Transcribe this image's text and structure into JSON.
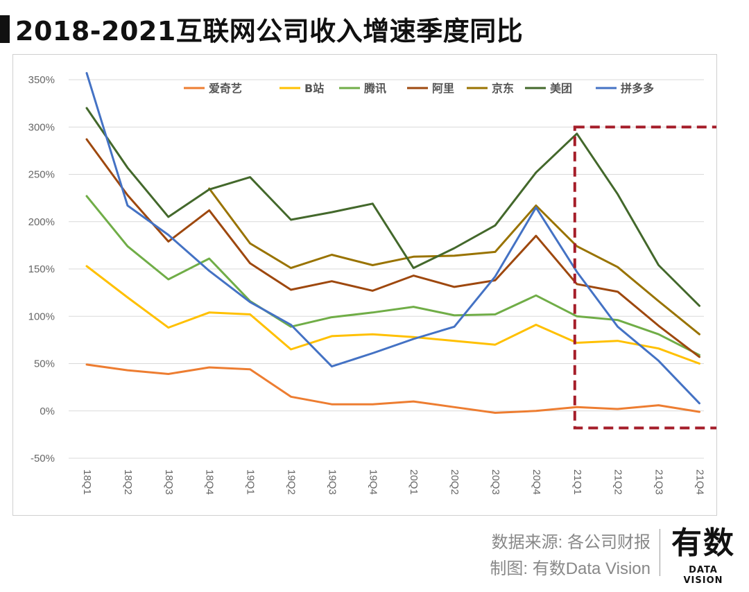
{
  "title": "2018-2021互联网公司收入增速季度同比",
  "footer": {
    "source": "数据来源: 各公司财报",
    "credit": "制图: 有数Data Vision"
  },
  "logo": {
    "main": "有数",
    "sub": "DATA VISION"
  },
  "chart_data": {
    "type": "line",
    "title": "2018-2021互联网公司收入增速季度同比",
    "xlabel": "",
    "ylabel": "",
    "ylim": [
      -50,
      350
    ],
    "yticks": [
      -50,
      0,
      50,
      100,
      150,
      200,
      250,
      300,
      350
    ],
    "ytick_labels": [
      "-50%",
      "0%",
      "50%",
      "100%",
      "150%",
      "200%",
      "250%",
      "300%",
      "350%"
    ],
    "grid": true,
    "legend_position": "top",
    "categories": [
      "18Q1",
      "18Q2",
      "18Q3",
      "18Q4",
      "19Q1",
      "19Q2",
      "19Q3",
      "19Q4",
      "20Q1",
      "20Q2",
      "20Q3",
      "20Q4",
      "21Q1",
      "21Q2",
      "21Q3",
      "21Q4"
    ],
    "series": [
      {
        "name": "爱奇艺",
        "color": "#ED7D31",
        "values": [
          49,
          43,
          39,
          46,
          44,
          15,
          7,
          7,
          10,
          4,
          -2,
          0,
          4,
          2,
          6,
          -1
        ]
      },
      {
        "name": "B站",
        "color": "#FFC000",
        "values": [
          153,
          120,
          88,
          104,
          102,
          65,
          79,
          81,
          78,
          74,
          70,
          91,
          72,
          74,
          66,
          50
        ]
      },
      {
        "name": "腾讯",
        "color": "#70AD47",
        "values": [
          227,
          174,
          139,
          161,
          116,
          89,
          99,
          104,
          110,
          101,
          102,
          122,
          100,
          96,
          81,
          59
        ]
      },
      {
        "name": "阿里",
        "color": "#9E480E",
        "values": [
          287,
          228,
          179,
          212,
          156,
          128,
          137,
          127,
          143,
          131,
          138,
          185,
          134,
          126,
          90,
          57
        ]
      },
      {
        "name": "京东",
        "color": "#997300",
        "values": [
          null,
          null,
          null,
          235,
          177,
          151,
          165,
          154,
          163,
          164,
          168,
          217,
          174,
          152,
          116,
          81
        ]
      },
      {
        "name": "美团",
        "color": "#43682B",
        "values": [
          320,
          257,
          205,
          234,
          247,
          202,
          210,
          219,
          151,
          172,
          196,
          252,
          293,
          229,
          154,
          111
        ]
      },
      {
        "name": "拼多多",
        "color": "#4472C4",
        "values": [
          357,
          217,
          186,
          148,
          115,
          91,
          47,
          61,
          76,
          89,
          142,
          215,
          147,
          89,
          53,
          8
        ]
      }
    ],
    "highlight": {
      "label": "",
      "from": "21Q1",
      "to": "21Q4",
      "color": "#A51E2A"
    }
  }
}
